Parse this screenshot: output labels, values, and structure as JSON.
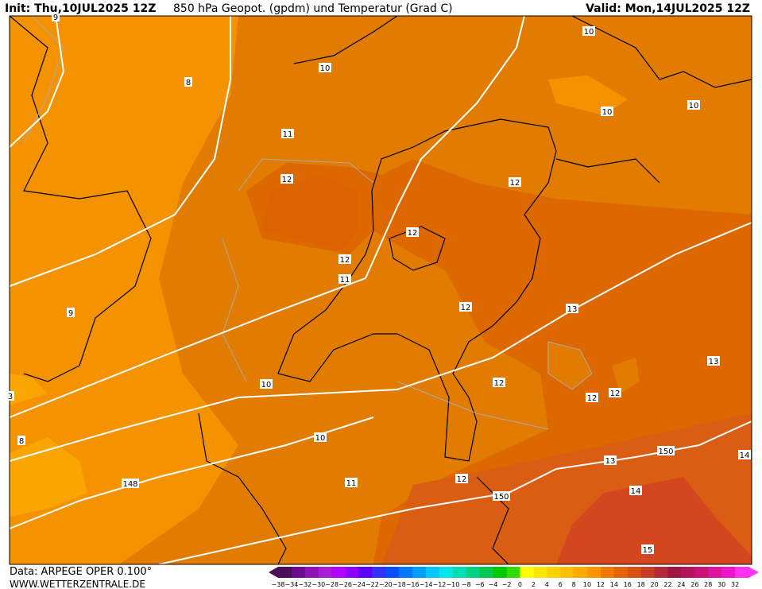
{
  "header": {
    "init": "Init: Thu,10JUL2025 12Z",
    "title": "850 hPa Geopot. (gpdm) und Temperatur (Grad C)",
    "valid": "Valid: Mon,14JUL2025 12Z"
  },
  "map": {
    "contour_labels": [
      "9",
      "8",
      "10",
      "10",
      "10",
      "10",
      "11",
      "12",
      "12",
      "12",
      "12",
      "11",
      "9",
      "12",
      "13",
      "13",
      "12",
      "12",
      "12",
      "10",
      "3",
      "10",
      "8",
      "148",
      "11",
      "12",
      "150",
      "13",
      "14",
      "150",
      "14",
      "15"
    ]
  },
  "colorbar": {
    "labels": [
      "−38",
      "−34",
      "−32",
      "−30",
      "−28",
      "−26",
      "−24",
      "−22",
      "−20",
      "−18",
      "−16",
      "−14",
      "−12",
      "−10",
      "−8",
      "−6",
      "−4",
      "−2",
      "0",
      "2",
      "4",
      "6",
      "8",
      "10",
      "12",
      "14",
      "16",
      "18",
      "20",
      "22",
      "24",
      "26",
      "28",
      "30",
      "32"
    ]
  },
  "footer": {
    "data": "Data: ARPEGE OPER 0.100°",
    "site": "WWW.WETTERZENTRALE.DE"
  }
}
